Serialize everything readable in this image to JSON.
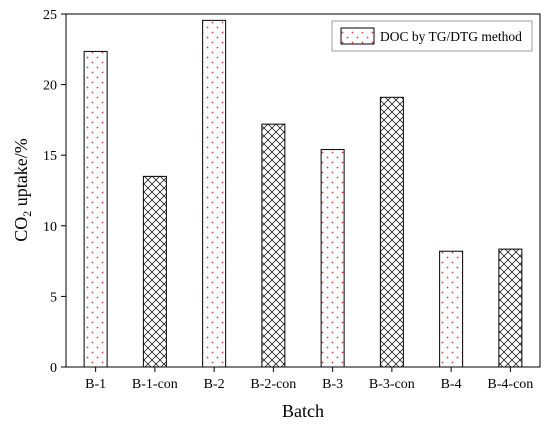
{
  "chart_data": {
    "type": "bar",
    "categories": [
      "B-1",
      "B-1-con",
      "B-2",
      "B-2-con",
      "B-3",
      "B-3-con",
      "B-4",
      "B-4-con"
    ],
    "values": [
      22.35,
      13.5,
      24.55,
      17.2,
      15.4,
      19.1,
      8.2,
      8.35
    ],
    "patterns": [
      "dots",
      "crosshatch",
      "dots",
      "crosshatch",
      "dots",
      "crosshatch",
      "dots",
      "crosshatch"
    ],
    "xlabel": "Batch",
    "ylabel_main": "CO",
    "ylabel_sub": "2",
    "ylabel_rest": " uptake/%",
    "ylim": [
      0,
      25
    ],
    "yticks": [
      0,
      5,
      10,
      15,
      20,
      25
    ],
    "grid": false,
    "legend": {
      "position": "top-right",
      "entries": [
        {
          "label": "DOC by TG/DTG method",
          "pattern": "dots"
        }
      ]
    },
    "colors": {
      "dot": "#e03c3c",
      "hatch": "#000000",
      "bar_border": "#000000"
    }
  }
}
